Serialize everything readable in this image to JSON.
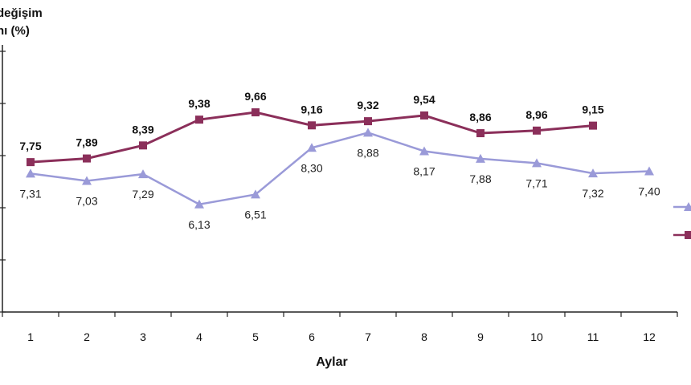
{
  "chart_data": {
    "type": "line",
    "title": "",
    "ylabel_lines": [
      "değişim",
      "nı (%)"
    ],
    "xlabel": "Aylar",
    "categories": [
      "1",
      "2",
      "3",
      "4",
      "5",
      "6",
      "7",
      "8",
      "9",
      "10",
      "11",
      "12"
    ],
    "ylim": [
      2,
      12
    ],
    "yticks": [
      2,
      4,
      6,
      8,
      10,
      12
    ],
    "grid": false,
    "legend_position": "right (cropped)",
    "series": [
      {
        "name": "Series 1 (lavender, triangle markers)",
        "color": "#9a9ad8",
        "marker": "triangle",
        "values": [
          7.31,
          7.03,
          7.29,
          6.13,
          6.51,
          8.3,
          8.88,
          8.17,
          7.88,
          7.71,
          7.32,
          7.4
        ],
        "labels": [
          "7,31",
          "7,03",
          "7,29",
          "6,13",
          "6,51",
          "8,30",
          "8,88",
          "8,17",
          "7,88",
          "7,71",
          "7,32",
          "7,40"
        ]
      },
      {
        "name": "Series 2 (maroon, square markers)",
        "color": "#8b2f5a",
        "marker": "square",
        "values": [
          7.75,
          7.89,
          8.39,
          9.38,
          9.66,
          9.16,
          9.32,
          9.54,
          8.86,
          8.96,
          9.15,
          null
        ],
        "labels": [
          "7,75",
          "7,89",
          "8,39",
          "9,38",
          "9,66",
          "9,16",
          "9,32",
          "9,54",
          "8,86",
          "8,96",
          "9,15",
          ""
        ]
      }
    ]
  }
}
